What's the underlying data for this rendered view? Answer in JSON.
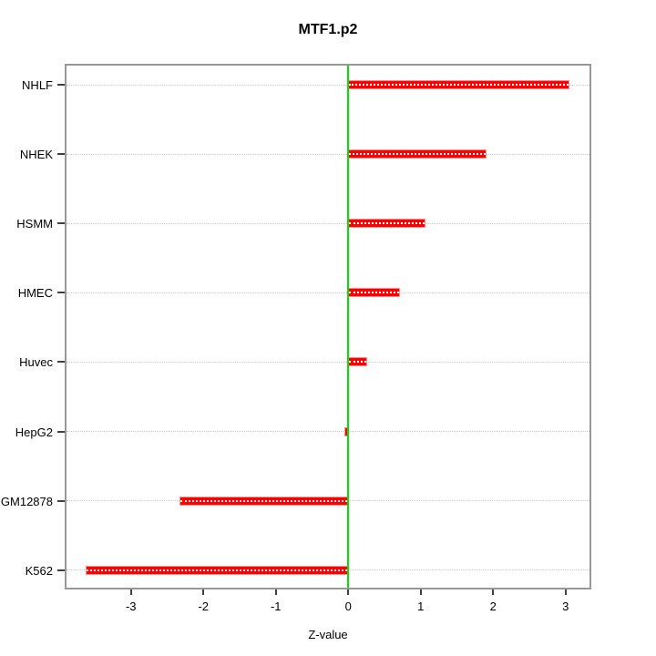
{
  "title": "MTF1.p2",
  "chart_data": {
    "type": "bar",
    "orientation": "horizontal",
    "title": "MTF1.p2",
    "xlabel": "Z-value",
    "ylabel": "",
    "categories": [
      "NHLF",
      "NHEK",
      "HSMM",
      "HMEC",
      "Huvec",
      "HepG2",
      "GM12878",
      "K562"
    ],
    "values": [
      3.05,
      1.91,
      1.07,
      0.71,
      0.26,
      -0.05,
      -2.33,
      -3.62
    ],
    "x_ticks": [
      -3,
      -2,
      -1,
      0,
      1,
      2,
      3
    ],
    "xlim": [
      -3.89,
      3.33
    ],
    "grid": true,
    "zero_line_x": 0,
    "legend": "none",
    "colors": {
      "bar_fill": "#ff0000",
      "bar_border": "#ff9090",
      "bar_centerline": "#ffffff",
      "zero_line": "#00e000",
      "grid_line": "#c8c8c8",
      "plot_border": "#989898",
      "tick": "#404040",
      "text": "#000000",
      "background": "#ffffff"
    }
  }
}
